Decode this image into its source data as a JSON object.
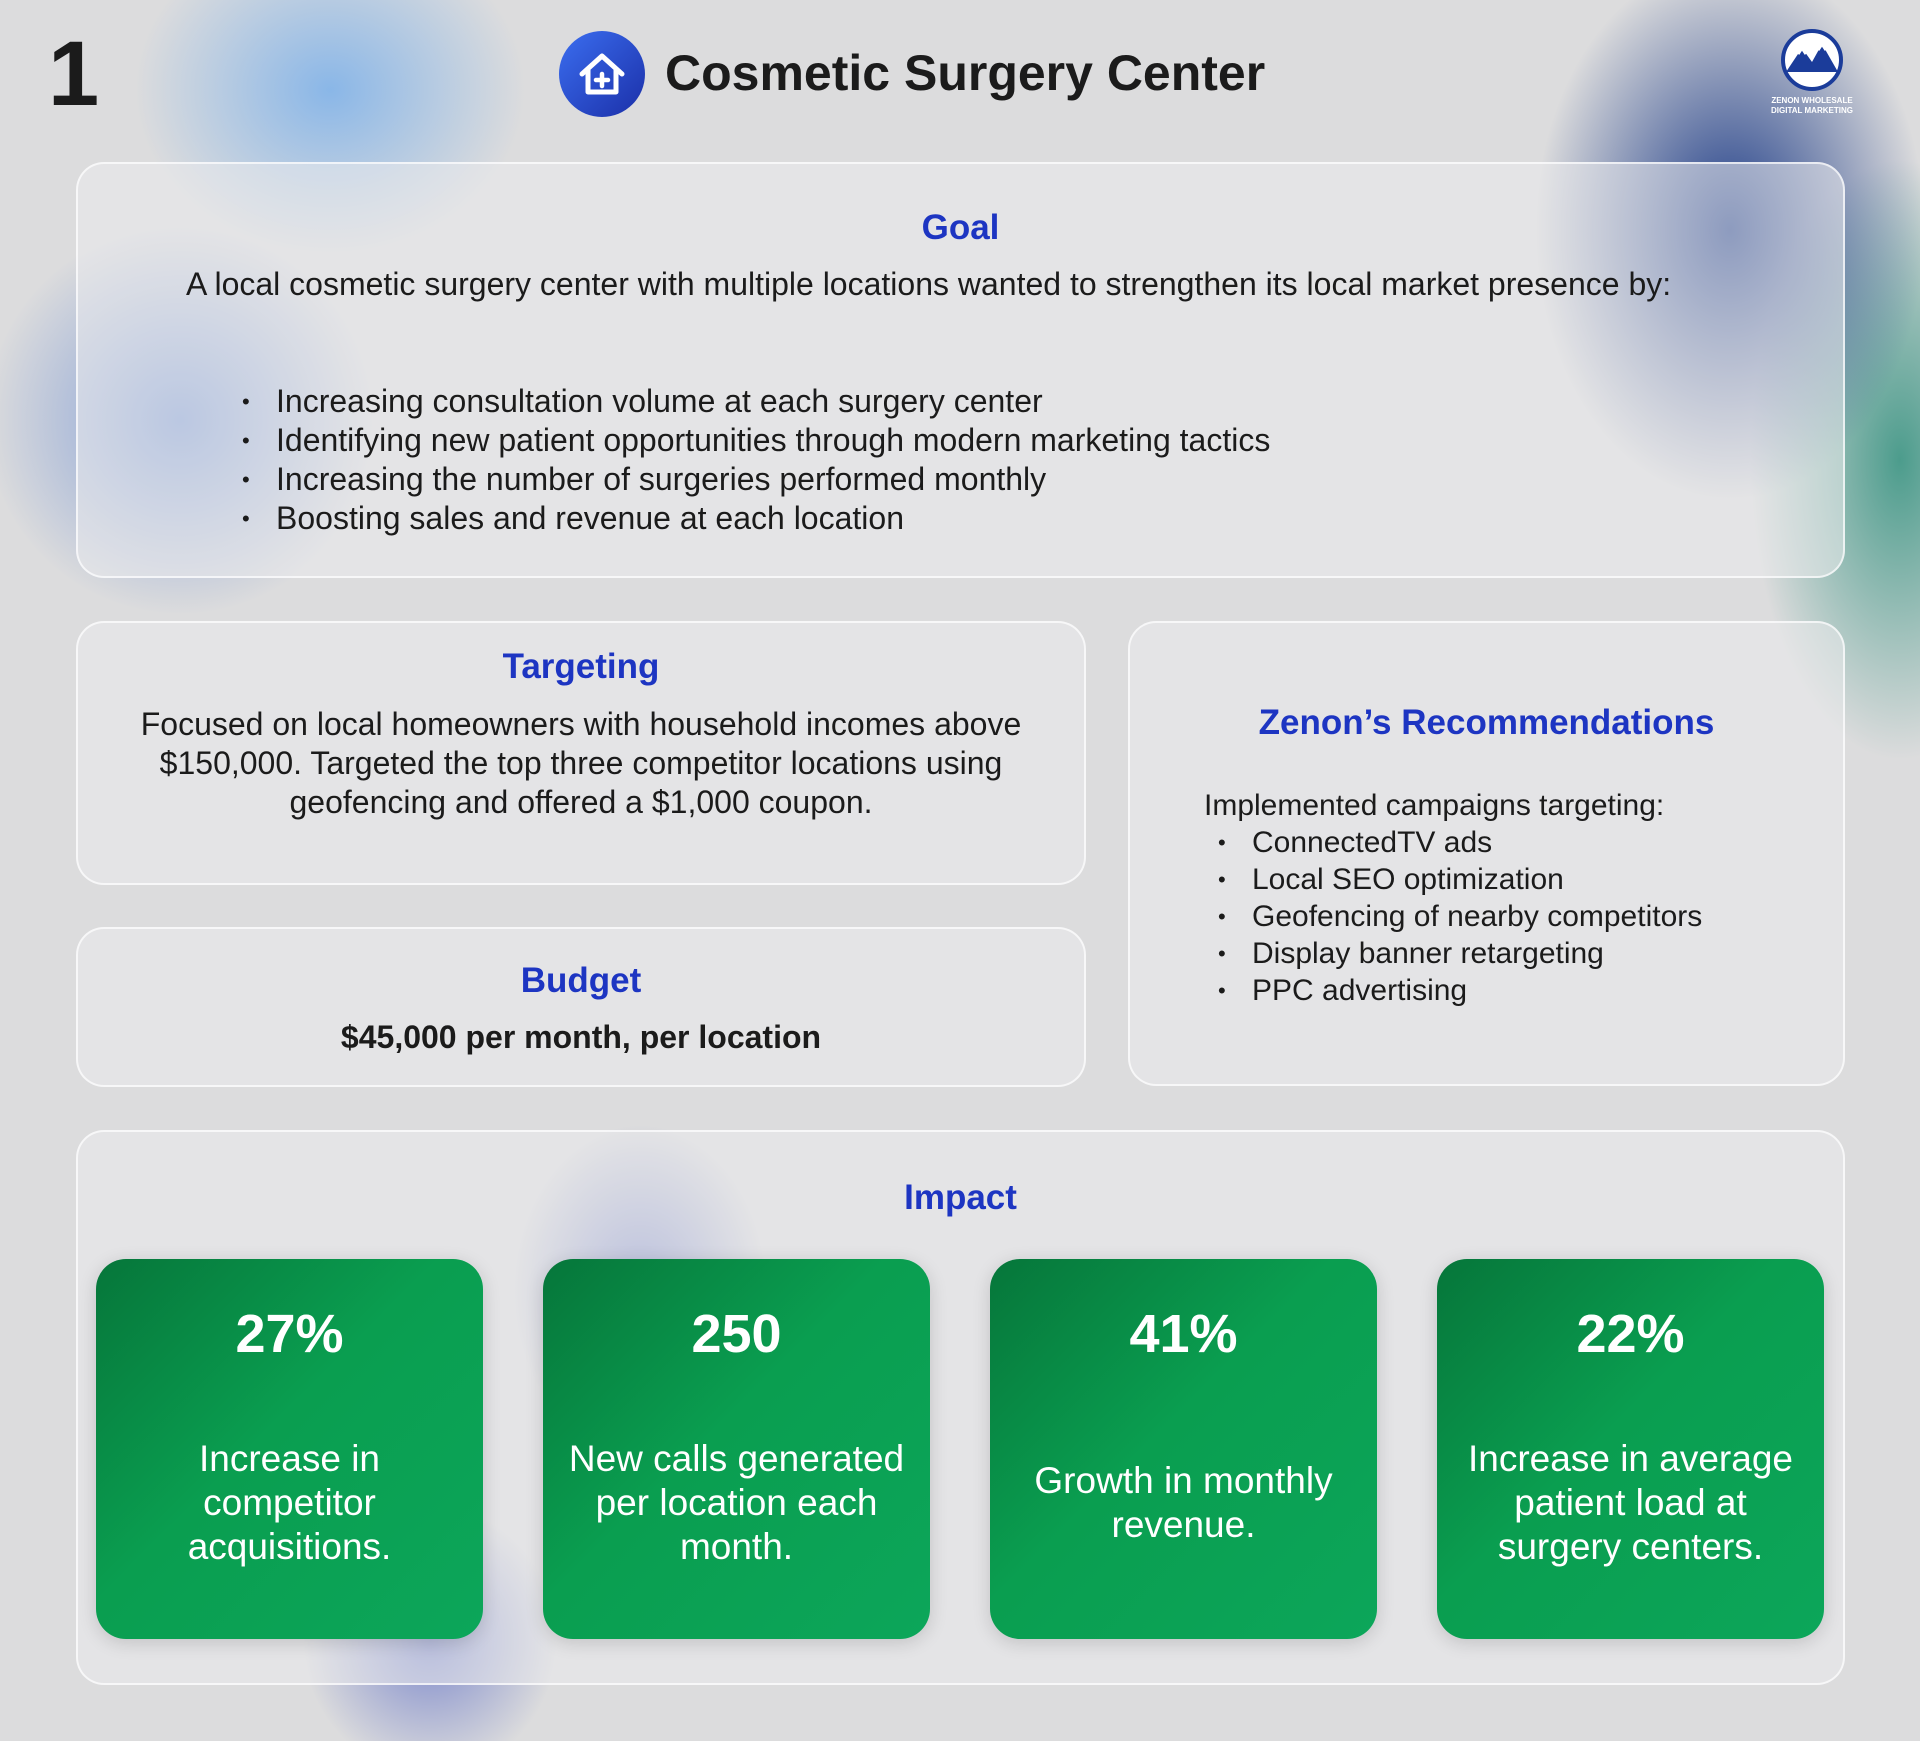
{
  "page_number": "1",
  "header": {
    "title": "Cosmetic Surgery Center",
    "logo_line1": "ZENON WHOLESALE",
    "logo_line2": "DIGITAL MARKETING"
  },
  "goal": {
    "heading": "Goal",
    "text": "A local cosmetic surgery center with multiple locations wanted to strengthen its local market presence by:",
    "bullets": [
      "Increasing consultation volume at each surgery center",
      "Identifying new patient opportunities through modern marketing tactics",
      "Increasing the number of surgeries performed monthly",
      "Boosting sales and revenue at each location"
    ]
  },
  "targeting": {
    "heading": "Targeting",
    "text": "Focused on local homeowners with household incomes above $150,000. Targeted the top three competitor locations using geofencing and offered a $1,000 coupon."
  },
  "budget": {
    "heading": "Budget",
    "text": "$45,000 per month, per location"
  },
  "recommendations": {
    "heading": "Zenon’s Recommendations",
    "intro": "Implemented campaigns targeting:",
    "bullets": [
      "ConnectedTV ads",
      "Local SEO optimization",
      "Geofencing of nearby competitors",
      "Display banner retargeting",
      "PPC advertising"
    ]
  },
  "impact": {
    "heading": "Impact",
    "stats": [
      {
        "value": "27%",
        "label": "Increase in competitor acquisitions."
      },
      {
        "value": "250",
        "label": "New calls generated per location each month."
      },
      {
        "value": "41%",
        "label": "Growth in monthly revenue."
      },
      {
        "value": "22%",
        "label": "Increase in average patient load at surgery centers."
      }
    ]
  }
}
